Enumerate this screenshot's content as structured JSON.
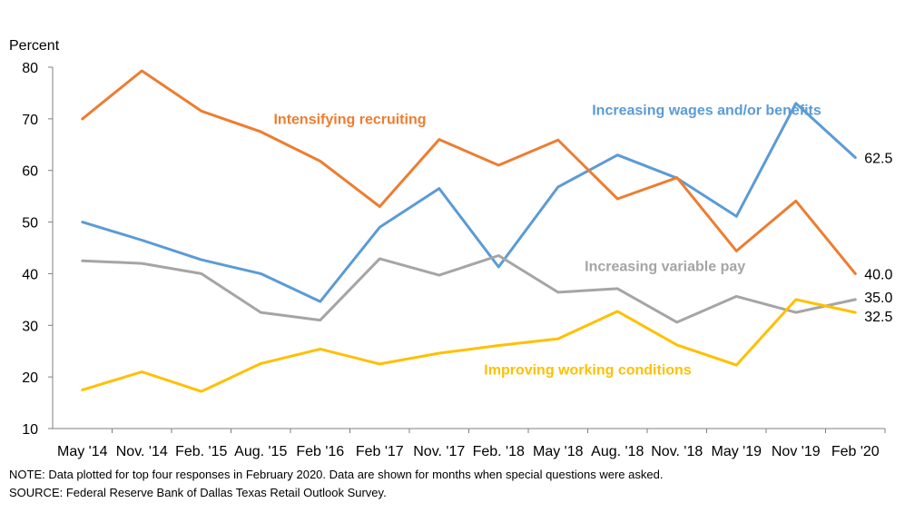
{
  "chart_data": {
    "type": "line",
    "ylabel": "Percent",
    "ylim": [
      10,
      80
    ],
    "yticks": [
      10,
      20,
      30,
      40,
      50,
      60,
      70,
      80
    ],
    "categories": [
      "May '14",
      "Nov. '14",
      "Feb. '15",
      "Aug. '15",
      "Feb '16",
      "Feb '17",
      "Nov. '17",
      "Feb. '18",
      "May '18",
      "Aug. '18",
      "Nov. '18",
      "May '19",
      "Nov '19",
      "Feb '20"
    ],
    "grid": false,
    "series": [
      {
        "name": "Increasing wages and/or benefits",
        "color": "#5B9BD5",
        "values": [
          50.0,
          46.5,
          42.7,
          40.0,
          34.6,
          49.0,
          56.5,
          41.3,
          56.8,
          63.0,
          58.5,
          51.1,
          73.0,
          62.5
        ],
        "end_label": "62.5"
      },
      {
        "name": "Intensifying recruiting",
        "color": "#ED7D31",
        "values": [
          70.0,
          79.3,
          71.5,
          67.5,
          61.8,
          53.0,
          66.0,
          61.0,
          65.9,
          54.5,
          58.6,
          44.4,
          54.1,
          40.0
        ],
        "end_label": "40.0"
      },
      {
        "name": "Increasing variable pay",
        "color": "#A5A5A5",
        "values": [
          42.5,
          42.0,
          40.0,
          32.5,
          31.0,
          42.9,
          39.7,
          43.5,
          36.4,
          37.1,
          30.6,
          35.6,
          32.5,
          35.0
        ],
        "end_label": "35.0"
      },
      {
        "name": "Improving working conditions",
        "color": "#FFC000",
        "values": [
          17.5,
          21.0,
          17.2,
          22.6,
          25.4,
          22.5,
          24.6,
          26.1,
          27.4,
          32.7,
          26.2,
          22.3,
          35.0,
          32.5
        ],
        "end_label": "32.5"
      }
    ]
  },
  "notes": {
    "note": "NOTE: Data plotted for top four responses in February 2020. Data are shown for months when special questions were asked.",
    "source": "SOURCE: Federal Reserve Bank of Dallas Texas Retail Outlook Survey."
  }
}
